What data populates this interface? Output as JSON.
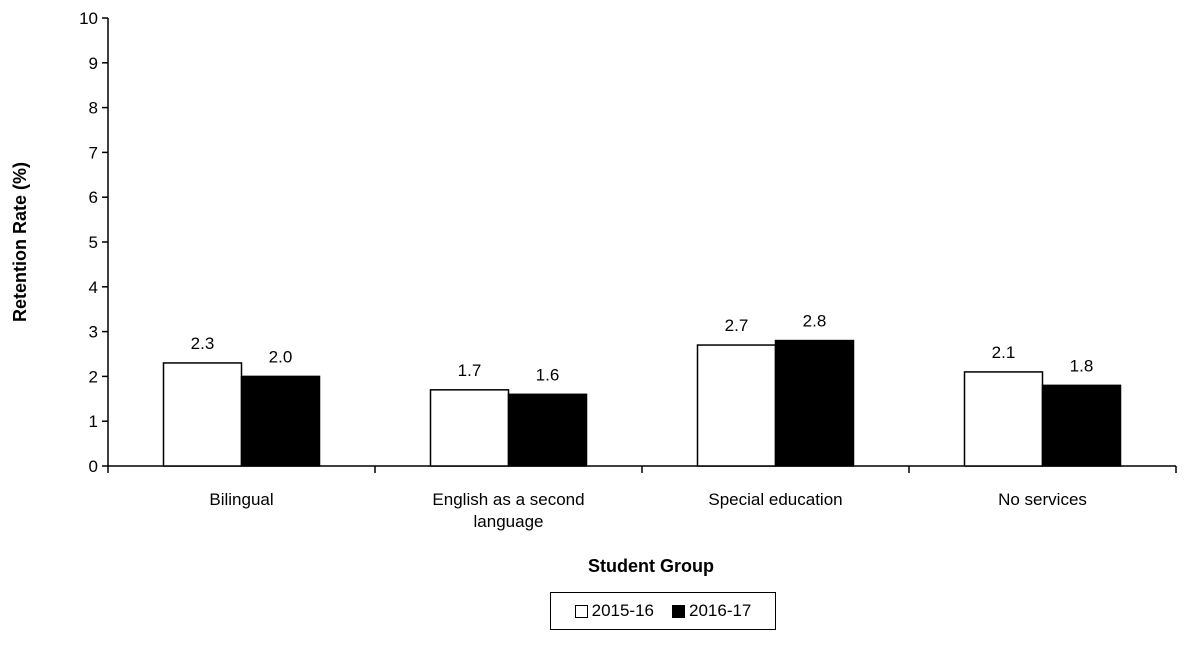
{
  "chart_data": {
    "type": "bar",
    "categories": [
      "Bilingual",
      "English as a second language",
      "Special education",
      "No services"
    ],
    "category_lines": [
      [
        "Bilingual"
      ],
      [
        "English as a second",
        "language"
      ],
      [
        "Special education"
      ],
      [
        "No services"
      ]
    ],
    "series": [
      {
        "name": "2015-16",
        "values": [
          2.3,
          1.7,
          2.7,
          2.1
        ],
        "labels": [
          "2.3",
          "1.7",
          "2.7",
          "2.1"
        ],
        "color": "#ffffff"
      },
      {
        "name": "2016-17",
        "values": [
          2.0,
          1.6,
          2.8,
          1.8
        ],
        "labels": [
          "2.0",
          "1.6",
          "2.8",
          "1.8"
        ],
        "color": "#000000"
      }
    ],
    "xlabel": "Student Group",
    "ylabel": "Retention Rate (%)",
    "ylim": [
      0,
      10
    ],
    "yticks": [
      "0",
      "1",
      "2",
      "3",
      "4",
      "5",
      "6",
      "7",
      "8",
      "9",
      "10"
    ],
    "grid": false,
    "legend_position": "bottom-center"
  }
}
